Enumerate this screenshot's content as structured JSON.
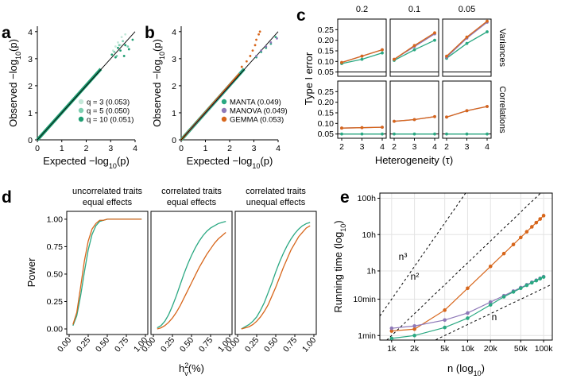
{
  "colors": {
    "manta": "#2aa882",
    "manova": "#8e79b8",
    "gemma": "#d7661b",
    "q3": "#c4e8d9",
    "q5": "#7ecfb1",
    "q10": "#1f9d72",
    "identity": "#000000"
  },
  "chart_data": [
    {
      "panel": "a",
      "type": "scatter",
      "xlabel": "Expected  -log10(p)",
      "ylabel": "Observed  -log10(p)",
      "xlim": [
        0,
        4
      ],
      "ylim": [
        0,
        4.2
      ],
      "xticks": [
        0,
        1,
        2,
        3,
        4
      ],
      "yticks": [
        0,
        1,
        2,
        3,
        4
      ],
      "legend": "bottom-right",
      "series": [
        {
          "name": "q = 3 (0.053)",
          "color_key": "q3",
          "points": [
            [
              3.2,
              3.45
            ],
            [
              3.3,
              3.6
            ],
            [
              3.45,
              3.8
            ],
            [
              3.6,
              3.9
            ],
            [
              3.4,
              3.5
            ],
            [
              3.1,
              3.3
            ]
          ]
        },
        {
          "name": "q = 5 (0.050)",
          "color_key": "q5",
          "points": [
            [
              3.15,
              3.25
            ],
            [
              3.35,
              3.5
            ],
            [
              3.5,
              3.65
            ],
            [
              3.7,
              3.45
            ],
            [
              3.25,
              3.1
            ]
          ]
        },
        {
          "name": "q = 10 (0.051)",
          "color_key": "q10",
          "points": [
            [
              3.05,
              3.15
            ],
            [
              3.2,
              3.05
            ],
            [
              3.4,
              3.3
            ],
            [
              3.55,
              3.1
            ],
            [
              3.75,
              3.35
            ],
            [
              3.9,
              3.7
            ],
            [
              3.6,
              3.5
            ],
            [
              3.3,
              3.4
            ]
          ]
        }
      ]
    },
    {
      "panel": "b",
      "type": "scatter",
      "xlabel": "Expected  -log10(p)",
      "ylabel": "Observed  -log10(p)",
      "xlim": [
        0,
        4
      ],
      "ylim": [
        0,
        4.2
      ],
      "xticks": [
        0,
        1,
        2,
        3,
        4
      ],
      "yticks": [
        0,
        1,
        2,
        3,
        4
      ],
      "legend": "bottom-right",
      "series": [
        {
          "name": "MANTA (0.049)",
          "color_key": "manta",
          "points": [
            [
              3.1,
              3.05
            ],
            [
              3.3,
              3.25
            ],
            [
              3.5,
              3.4
            ],
            [
              3.7,
              3.55
            ],
            [
              3.9,
              3.8
            ]
          ]
        },
        {
          "name": "MANOVA (0.049)",
          "color_key": "manova",
          "points": [
            [
              3.1,
              3.1
            ],
            [
              3.3,
              3.3
            ],
            [
              3.5,
              3.45
            ],
            [
              3.7,
              3.6
            ],
            [
              3.95,
              3.75
            ]
          ]
        },
        {
          "name": "GEMMA (0.053)",
          "color_key": "gemma",
          "points": [
            [
              2.5,
              2.7
            ],
            [
              2.7,
              2.9
            ],
            [
              2.85,
              3.1
            ],
            [
              2.95,
              3.3
            ],
            [
              3.05,
              3.5
            ],
            [
              3.1,
              3.7
            ],
            [
              3.2,
              3.9
            ],
            [
              3.25,
              4.0
            ]
          ]
        }
      ]
    },
    {
      "panel": "c",
      "type": "line",
      "xlabel": "Heterogeneity (τ)",
      "ylabel": "Type I error",
      "x": [
        2,
        3,
        4
      ],
      "column_strips": [
        "0.2",
        "0.1",
        "0.05"
      ],
      "row_strips": [
        "Variances",
        "Correlations"
      ],
      "ylim": [
        0.03,
        0.3
      ],
      "yticks": [
        0.05,
        0.1,
        0.15,
        0.2,
        0.25
      ],
      "reference_line": 0.05,
      "facets": [
        {
          "row": 0,
          "col": 0,
          "series": [
            {
              "key": "manta",
              "values": [
                0.09,
                0.11,
                0.14
              ]
            },
            {
              "key": "manova",
              "values": [
                0.095,
                0.125,
                0.155
              ]
            },
            {
              "key": "gemma",
              "values": [
                0.095,
                0.125,
                0.155
              ]
            }
          ]
        },
        {
          "row": 0,
          "col": 1,
          "series": [
            {
              "key": "manta",
              "values": [
                0.105,
                0.155,
                0.2
              ]
            },
            {
              "key": "manova",
              "values": [
                0.11,
                0.17,
                0.23
              ]
            },
            {
              "key": "gemma",
              "values": [
                0.11,
                0.175,
                0.235
              ]
            }
          ]
        },
        {
          "row": 0,
          "col": 2,
          "series": [
            {
              "key": "manta",
              "values": [
                0.115,
                0.185,
                0.24
              ]
            },
            {
              "key": "manova",
              "values": [
                0.12,
                0.21,
                0.285
              ]
            },
            {
              "key": "gemma",
              "values": [
                0.125,
                0.215,
                0.29
              ]
            }
          ]
        },
        {
          "row": 1,
          "col": 0,
          "series": [
            {
              "key": "manta",
              "values": [
                0.05,
                0.05,
                0.05
              ]
            },
            {
              "key": "manova",
              "values": [
                0.078,
                0.08,
                0.082
              ]
            },
            {
              "key": "gemma",
              "values": [
                0.078,
                0.08,
                0.082
              ]
            }
          ]
        },
        {
          "row": 1,
          "col": 1,
          "series": [
            {
              "key": "manta",
              "values": [
                0.05,
                0.05,
                0.05
              ]
            },
            {
              "key": "manova",
              "values": [
                0.11,
                0.118,
                0.132
              ]
            },
            {
              "key": "gemma",
              "values": [
                0.11,
                0.118,
                0.132
              ]
            }
          ]
        },
        {
          "row": 1,
          "col": 2,
          "series": [
            {
              "key": "manta",
              "values": [
                0.05,
                0.05,
                0.05
              ]
            },
            {
              "key": "manova",
              "values": [
                0.13,
                0.16,
                0.18
              ]
            },
            {
              "key": "gemma",
              "values": [
                0.13,
                0.16,
                0.18
              ]
            }
          ]
        }
      ]
    },
    {
      "panel": "d",
      "type": "line",
      "xlabel": "h",
      "xlabel_sub": "v",
      "xlabel_sup": "2",
      "xlabel_tail": "(%)",
      "ylabel": "Power",
      "xlim": [
        0,
        1
      ],
      "ylim": [
        0,
        1.05
      ],
      "xticks": [
        "0.00",
        "0.25",
        "0.50",
        "0.75",
        "1.00"
      ],
      "yticks": [
        "0.00",
        "0.25",
        "0.50",
        "0.75",
        "1.00"
      ],
      "x": [
        0.05,
        0.1,
        0.15,
        0.2,
        0.25,
        0.3,
        0.35,
        0.4,
        0.45,
        0.5,
        0.55,
        0.6,
        0.65,
        0.7,
        0.75,
        0.8,
        0.85,
        0.9,
        0.95
      ],
      "facets": [
        {
          "strip": [
            "uncorrelated traits",
            "equal effects"
          ],
          "series": [
            {
              "key": "manta",
              "values": [
                0.03,
                0.12,
                0.3,
                0.52,
                0.72,
                0.86,
                0.94,
                0.98,
                0.99,
                1.0,
                1.0,
                1.0,
                1.0,
                1.0,
                1.0,
                1.0,
                1.0,
                1.0,
                1.0
              ]
            },
            {
              "key": "gemma",
              "values": [
                0.04,
                0.15,
                0.38,
                0.62,
                0.8,
                0.91,
                0.96,
                0.99,
                0.99,
                1.0,
                1.0,
                1.0,
                1.0,
                1.0,
                1.0,
                1.0,
                1.0,
                1.0,
                1.0
              ]
            }
          ]
        },
        {
          "strip": [
            "correlated traits",
            "equal effects"
          ],
          "series": [
            {
              "key": "manta",
              "values": [
                0.01,
                0.03,
                0.07,
                0.13,
                0.21,
                0.3,
                0.4,
                0.5,
                0.59,
                0.67,
                0.74,
                0.8,
                0.85,
                0.89,
                0.92,
                0.94,
                0.96,
                0.97,
                0.98
              ]
            },
            {
              "key": "gemma",
              "values": [
                0.0,
                0.01,
                0.03,
                0.06,
                0.1,
                0.15,
                0.21,
                0.28,
                0.35,
                0.42,
                0.49,
                0.56,
                0.62,
                0.68,
                0.73,
                0.78,
                0.82,
                0.85,
                0.88
              ]
            }
          ]
        },
        {
          "strip": [
            "correlated traits",
            "unequal effects"
          ],
          "series": [
            {
              "key": "manta",
              "values": [
                0.0,
                0.02,
                0.04,
                0.07,
                0.11,
                0.17,
                0.24,
                0.33,
                0.42,
                0.52,
                0.61,
                0.69,
                0.76,
                0.82,
                0.87,
                0.91,
                0.94,
                0.96,
                0.97
              ]
            },
            {
              "key": "gemma",
              "values": [
                0.0,
                0.01,
                0.02,
                0.04,
                0.07,
                0.11,
                0.16,
                0.22,
                0.3,
                0.38,
                0.47,
                0.56,
                0.64,
                0.72,
                0.78,
                0.84,
                0.88,
                0.92,
                0.94
              ]
            }
          ]
        }
      ]
    },
    {
      "panel": "e",
      "type": "line",
      "xlabel": "n (log10)",
      "ylabel": "Running time (log10)",
      "xscale": "log",
      "yscale": "log",
      "xlim": [
        700,
        130000
      ],
      "ylim_seconds": [
        45,
        500000
      ],
      "xticks": [
        {
          "v": 1000,
          "label": "1k"
        },
        {
          "v": 2000,
          "label": "2k"
        },
        {
          "v": 5000,
          "label": "5k"
        },
        {
          "v": 10000,
          "label": "10k"
        },
        {
          "v": 20000,
          "label": "20k"
        },
        {
          "v": 50000,
          "label": "50k"
        },
        {
          "v": 100000,
          "label": "100k"
        }
      ],
      "yticks": [
        {
          "v": 60,
          "label": "1min"
        },
        {
          "v": 600,
          "label": "10min"
        },
        {
          "v": 3600,
          "label": "1h"
        },
        {
          "v": 36000,
          "label": "10h"
        },
        {
          "v": 360000,
          "label": "100h"
        }
      ],
      "series": [
        {
          "key": "gemma",
          "x": [
            1000,
            2000,
            5000,
            10000,
            20000,
            30000,
            40000,
            50000,
            60000,
            70000,
            80000,
            90000,
            100000
          ],
          "y": [
            80,
            90,
            300,
            1200,
            4800,
            10800,
            19200,
            30000,
            43000,
            59000,
            77000,
            97000,
            120000
          ]
        },
        {
          "key": "manova",
          "x": [
            1000,
            2000,
            5000,
            10000,
            20000,
            30000,
            40000,
            50000,
            60000,
            70000,
            80000,
            90000,
            100000
          ],
          "y": [
            95,
            110,
            160,
            250,
            500,
            750,
            1000,
            1250,
            1500,
            1750,
            2000,
            2250,
            2500
          ]
        },
        {
          "key": "manta",
          "x": [
            1000,
            2000,
            5000,
            10000,
            20000,
            30000,
            40000,
            50000,
            60000,
            70000,
            80000,
            90000,
            100000
          ],
          "y": [
            50,
            60,
            100,
            180,
            420,
            700,
            950,
            1200,
            1450,
            1700,
            1950,
            2200,
            2450
          ]
        }
      ],
      "reference_lines": [
        {
          "label": "n³",
          "exp": 3,
          "y_at_1k": 600
        },
        {
          "label": "n²",
          "exp": 2,
          "y_at_1k": 60
        },
        {
          "label": "n",
          "exp": 1,
          "y_at_1k": 12
        }
      ]
    }
  ],
  "panel_labels": [
    "a",
    "b",
    "c",
    "d",
    "e"
  ]
}
